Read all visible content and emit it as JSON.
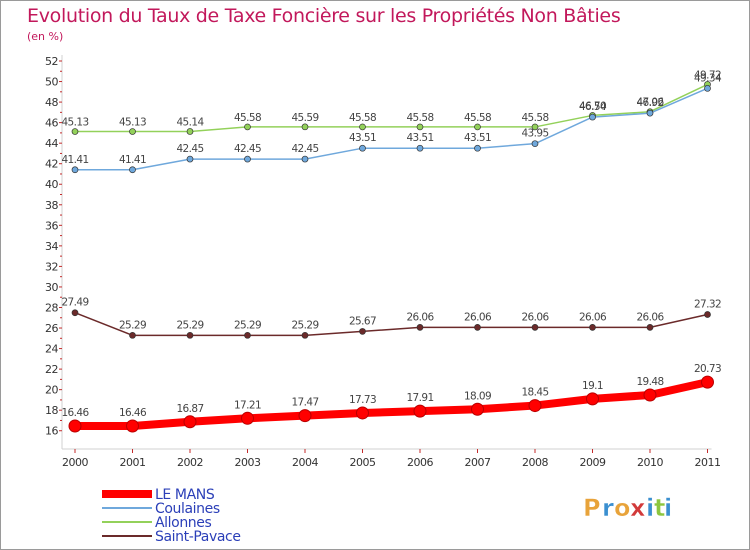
{
  "chart_data": {
    "type": "line",
    "title": "Evolution du Taux de Taxe Foncière sur les Propriétés Non Bâties",
    "subtitle": "(en %)",
    "xlabel": "",
    "ylabel": "",
    "ylim": [
      15,
      52
    ],
    "yticks": [
      16,
      18,
      20,
      22,
      24,
      26,
      28,
      30,
      32,
      34,
      36,
      38,
      40,
      42,
      44,
      46,
      48,
      50,
      52
    ],
    "categories": [
      "2000",
      "2001",
      "2002",
      "2003",
      "2004",
      "2005",
      "2006",
      "2007",
      "2008",
      "2009",
      "2010",
      "2011"
    ],
    "series": [
      {
        "name": "LE MANS",
        "color": "#ff0000",
        "values": [
          16.46,
          16.46,
          16.87,
          17.21,
          17.47,
          17.73,
          17.91,
          18.09,
          18.45,
          19.1,
          19.48,
          20.73
        ],
        "labels": [
          "16.46",
          "16.46",
          "16.87",
          "17.21",
          "17.47",
          "17.73",
          "17.91",
          "18.09",
          "18.45",
          "19.1",
          "19.48",
          "20.73"
        ]
      },
      {
        "name": "Coulaines",
        "color": "#6fa8dc",
        "values": [
          41.41,
          41.41,
          42.45,
          42.45,
          42.45,
          43.51,
          43.51,
          43.51,
          43.95,
          46.54,
          46.92,
          49.34
        ],
        "labels": [
          "41.41",
          "41.41",
          "42.45",
          "42.45",
          "42.45",
          "43.51",
          "43.51",
          "43.51",
          "43.95",
          "46.54",
          "46.92",
          "49.34"
        ]
      },
      {
        "name": "Allonnes",
        "color": "#93d15a",
        "values": [
          45.13,
          45.13,
          45.14,
          45.58,
          45.59,
          45.58,
          45.58,
          45.58,
          45.58,
          46.7,
          47.06,
          49.72
        ],
        "labels": [
          "45.13",
          "45.13",
          "45.14",
          "45.58",
          "45.59",
          "45.58",
          "45.58",
          "45.58",
          "45.58",
          "46.70",
          "47.06",
          "49.72"
        ]
      },
      {
        "name": "Saint-Pavace",
        "color": "#6b2a2a",
        "values": [
          27.49,
          25.29,
          25.29,
          25.29,
          25.29,
          25.67,
          26.06,
          26.06,
          26.06,
          26.06,
          26.06,
          27.32
        ],
        "labels": [
          "27.49",
          "25.29",
          "25.29",
          "25.29",
          "25.29",
          "25.67",
          "26.06",
          "26.06",
          "26.06",
          "26.06",
          "26.06",
          "27.32"
        ]
      }
    ],
    "legend_position": "bottom-left",
    "grid": false
  },
  "logo": {
    "text": "Proxiti",
    "letters": [
      "P",
      "r",
      "o",
      "x",
      "i",
      "t",
      "i"
    ],
    "colors": [
      "#e8a33a",
      "#3a8fd0",
      "#e8a33a",
      "#d23a3a",
      "#3a8fd0",
      "#8cc63f",
      "#3a8fd0"
    ]
  }
}
